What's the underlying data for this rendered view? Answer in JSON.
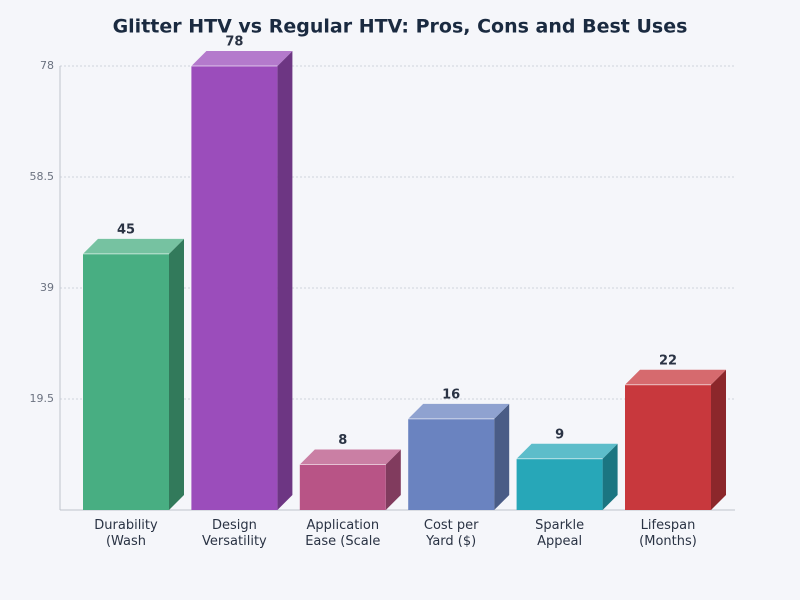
{
  "chart_data": {
    "type": "bar3d",
    "title": "Glitter HTV vs Regular HTV: Pros, Cons and Best Uses",
    "categories": [
      [
        "Durability",
        "(Wash"
      ],
      [
        "Design",
        "Versatility"
      ],
      [
        "Application",
        "Ease (Scale"
      ],
      [
        "Cost per",
        "Yard ($)"
      ],
      [
        "Sparkle",
        "Appeal"
      ],
      [
        "Lifespan",
        "(Months)"
      ]
    ],
    "values": [
      45,
      78,
      8,
      16,
      9,
      22
    ],
    "colors": [
      "#48ae82",
      "#9b4dbb",
      "#b85486",
      "#6a83c0",
      "#27a7b8",
      "#c8383d"
    ],
    "ylim": [
      0,
      78
    ],
    "yticks": [
      19.5,
      39,
      58.5,
      78
    ],
    "grid": true
  }
}
